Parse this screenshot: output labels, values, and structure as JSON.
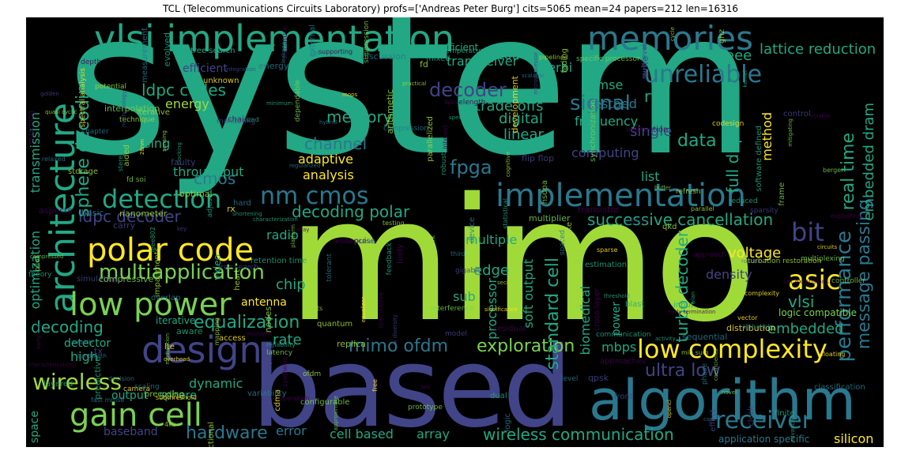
{
  "title": "TCL (Telecommunications Circuits Laboratory) profs=['Andreas Peter Burg'] cits=5065 mean=24 papers=212 len=16316",
  "colors": {
    "background": "#000000",
    "green": "#22a884",
    "lime": "#a0da39",
    "purple": "#414487",
    "teal": "#2a788e",
    "yellow": "#fde725",
    "lightgreen": "#7ad151"
  },
  "words": {
    "system": "system",
    "mimo": "mimo",
    "based": "based",
    "algorithm": "algorithm",
    "vlsi_implementation": "vlsi implementation",
    "memories": "memories",
    "unreliable": "unreliable",
    "architecture": "architecture",
    "implementation": "implementation",
    "detection": "detection",
    "nm_cmos": "nm cmos",
    "polar_code": "polar code",
    "low_power": "low power",
    "design": "design",
    "gain_cell": "gain cell",
    "wireless": "wireless",
    "low_complexity": "low complexity",
    "receiver": "receiver",
    "hardware": "hardware",
    "wireless_communication": "wireless communication",
    "ultra_low": "ultra low",
    "exploration": "exploration",
    "mimo_ofdm": "mimo ofdm",
    "asic": "asic",
    "bit": "bit",
    "performance": "performance",
    "message_passing": "message passing",
    "successive_cancellation": "successive cancellation",
    "decoding_polar": "decoding polar",
    "ldpc_decoder": "ldpc decoder",
    "multiapplication": "multiapplication",
    "equalization": "equalization",
    "decoding": "decoding",
    "signal": "signal",
    "memory": "memory",
    "channel": "channel",
    "decoder": "decoder",
    "fpga": "fpga",
    "data": "data",
    "cmos": "cmos",
    "energy": "energy",
    "ldpc_codes": "ldpc codes",
    "sphere_decoding": "sphere decoding",
    "trade_offs": "trade offs",
    "digital": "digital",
    "linear": "linear",
    "single": "single",
    "frequency": "frequency",
    "real_time": "real time",
    "full_duplex": "full duplex",
    "embedded_dram": "embedded dram",
    "lattice_reduction": "lattice reduction",
    "transceiver": "transceiver",
    "viterbi": "viterbi",
    "mmse": "mmse",
    "testbed": "testbed",
    "rf": "rf",
    "code": "code",
    "ieee": "ieee",
    "voltage": "voltage",
    "turbo_decoder": "turbo decoder",
    "standard_cell": "standard cell",
    "soft_output": "soft output",
    "edge": "edge",
    "chip": "chip",
    "antenna": "antenna",
    "sub": "sub",
    "radio": "radio",
    "processor": "processor",
    "embedded": "embedded",
    "density": "density",
    "adaptive": "adaptive",
    "analysis": "analysis",
    "processing": "processing",
    "throughput": "throughput",
    "efficient": "efficient",
    "transmission": "transmission",
    "optimization": "optimization",
    "rate": "rate",
    "detector": "detector",
    "high": "high",
    "dynamic": "dynamic",
    "baseband": "baseband",
    "error": "error",
    "cell_based": "cell based",
    "array": "array",
    "silicon": "silicon",
    "application_specific": "application specific",
    "method": "method",
    "list": "list",
    "multiple": "multiple",
    "vlsi": "vlsi",
    "mbps": "mbps",
    "power": "power",
    "biomedical": "biomedical",
    "output": "output",
    "sphere": "sphere",
    "space": "space",
    "iterative": "iterative",
    "video": "video",
    "computing": "computing",
    "logic_compatible": "logic compatible",
    "energy_efficient": "energy efficient",
    "tree_search": "tree search",
    "small": [
      "technique",
      "random",
      "fading",
      "impairments",
      "advanced",
      "optimal",
      "4kb",
      "dependable",
      "fast mmse",
      "tree search",
      "iterative",
      "equalizer",
      "testing",
      "compression",
      "improved",
      "distribution",
      "regularized",
      "instruction",
      "statistical",
      "perturbation restoration",
      "software defined",
      "cross layer",
      "evolved",
      "phase",
      "characterization",
      "reliability",
      "microprocessor",
      "suppression",
      "configurable",
      "supporting",
      "clocking",
      "resilience",
      "camera",
      "transistor",
      "interference",
      "controller",
      "circuits",
      "qkd",
      "storage",
      "overlap",
      "signature",
      "mops",
      "cdma",
      "faulty",
      "potential",
      "robust",
      "body",
      "adjustment",
      "ghz",
      "mapping",
      "clock",
      "discussion",
      "logic",
      "subthreshold",
      "retention time",
      "flip flop",
      "fd soi",
      "gigabit",
      "approximate",
      "reduced",
      "quantized",
      "floating",
      "practical",
      "third",
      "mixed",
      "theory",
      "speculative",
      "characterisation",
      "dual",
      "simulation",
      "development",
      "integration",
      "network",
      "gsm",
      "stereo",
      "parallel",
      "quantum",
      "heart",
      "carry",
      "synchronization",
      "multilevel",
      "rx diversity",
      "feedback",
      "communication",
      "control",
      "qpsk",
      "lte",
      "pipelined",
      "spectrum",
      "chain",
      "hsdpa",
      "sampling",
      "golden",
      "quasi cyclic",
      "shortening",
      "significance",
      "complexity",
      "platform",
      "classification",
      "technology",
      "operation",
      "synthesis",
      "umts",
      "latency",
      "estimation",
      "nanometer",
      "hybrid",
      "sensing",
      "filter",
      "cognitive",
      "effect",
      "precoding",
      "spectral analysis",
      "early termination",
      "residual",
      "vector",
      "injection",
      "health",
      "interpolation",
      "coefficients",
      "specific processor",
      "wlan",
      "aided",
      "model",
      "methodology",
      "matching",
      "level",
      "predictive",
      "secret",
      "key",
      "input",
      "set extensions",
      "aware",
      "ofdm",
      "28nm",
      "blast",
      "refresh",
      "nodes",
      "frame",
      "hard",
      "prototype",
      "case",
      "cycle",
      "write",
      "device",
      "parallelized",
      "monitoring",
      "measurement",
      "arithmetic",
      "exploiting",
      "threshold",
      "front",
      "decision",
      "relay",
      "non",
      "spaced",
      "compressive",
      "scalable",
      "downlink",
      "depth",
      "replica",
      "free",
      "external",
      "approach",
      "sequential",
      "aspects",
      "compressed",
      "volatile",
      "ieee802",
      "layered",
      "berger",
      "codesign",
      "multiplexing",
      "mitigating",
      "modulation",
      "alphabet",
      "finite",
      "unknown",
      "sparsity",
      "pilot",
      "basic",
      "bandwidth",
      "minimum",
      "min sum",
      "aes",
      "novel",
      "interest",
      "access",
      "activity",
      "variability",
      "pulse",
      "scaling",
      "overhead",
      "chapter",
      "relaxed",
      "energy",
      "leakage",
      "wavelength",
      "approaches",
      "functional",
      "sparse",
      "temperature",
      "kernel",
      "rake",
      "opencl",
      "tolerant",
      "fd",
      "multiplier",
      "buffer",
      "rx",
      "tx"
    ]
  }
}
